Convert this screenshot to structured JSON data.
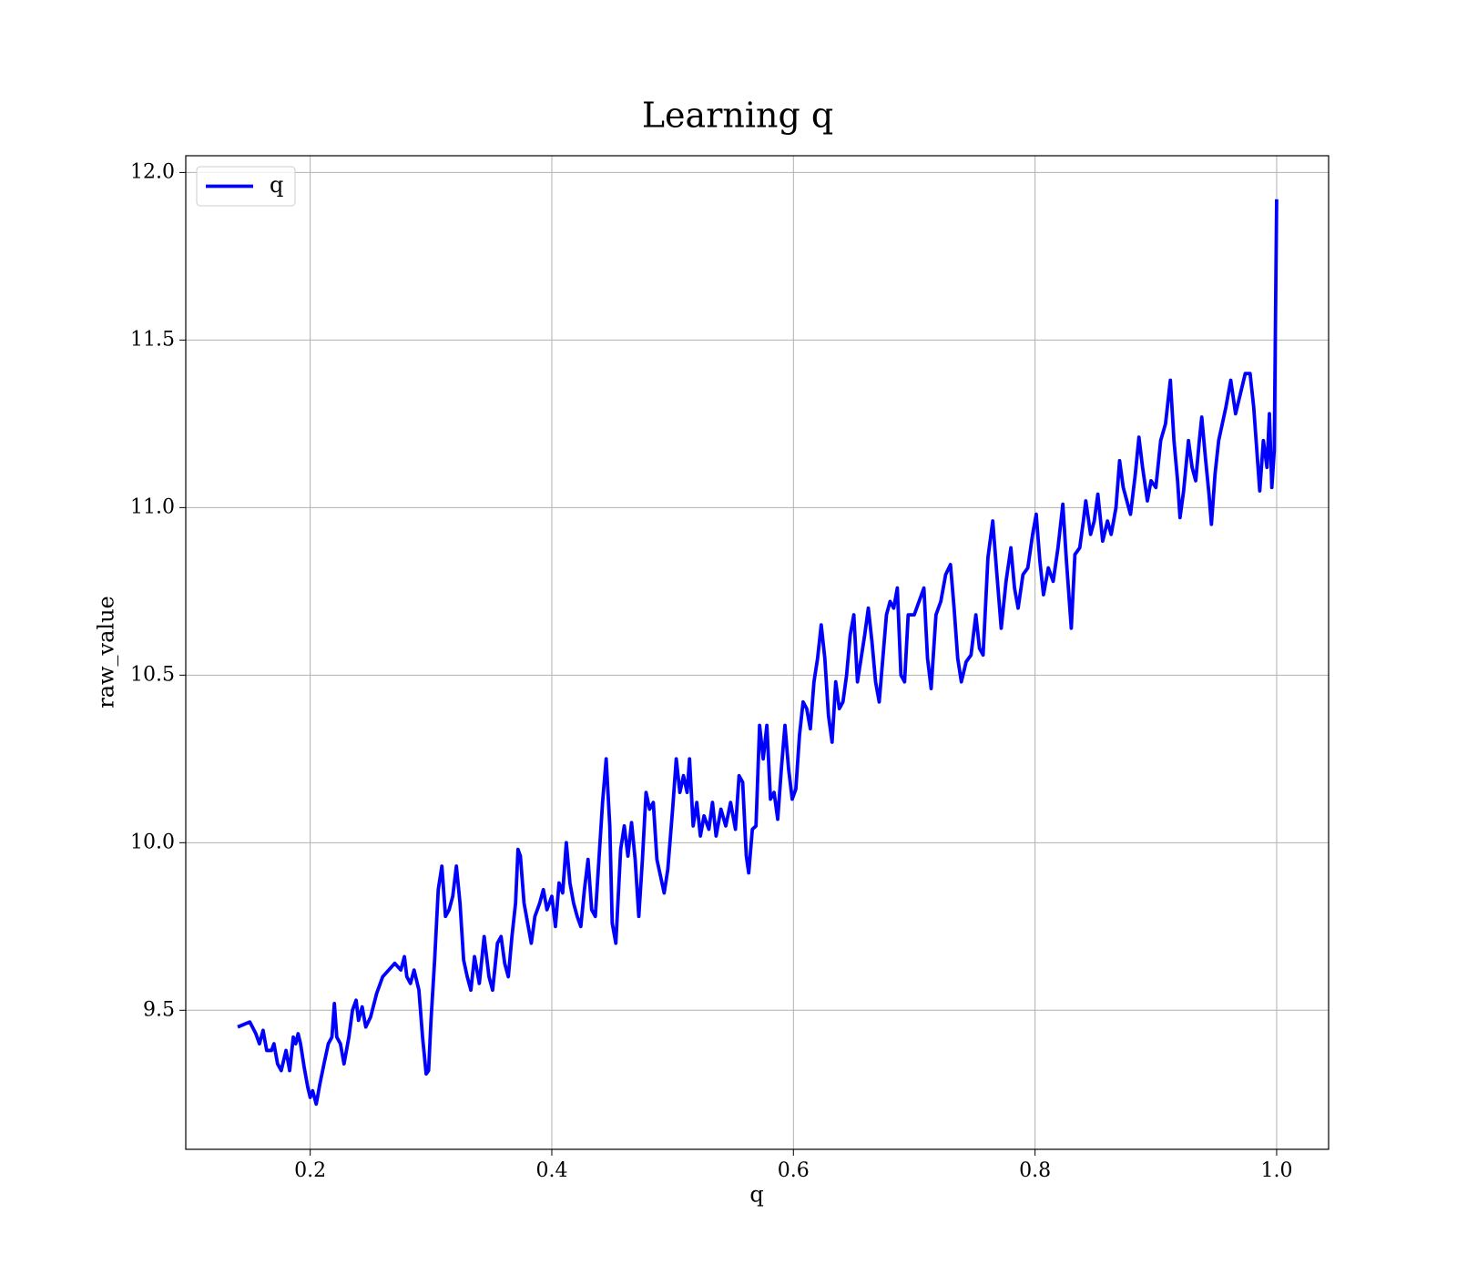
{
  "chart_data": {
    "type": "line",
    "title": "Learning q",
    "xlabel": "q",
    "ylabel": "raw_value",
    "x": [
      0.14,
      0.15,
      0.155,
      0.158,
      0.161,
      0.164,
      0.168,
      0.17,
      0.173,
      0.176,
      0.18,
      0.183,
      0.186,
      0.188,
      0.19,
      0.192,
      0.195,
      0.198,
      0.2,
      0.202,
      0.205,
      0.208,
      0.212,
      0.215,
      0.218,
      0.22,
      0.222,
      0.225,
      0.228,
      0.232,
      0.235,
      0.238,
      0.24,
      0.243,
      0.246,
      0.25,
      0.255,
      0.26,
      0.265,
      0.27,
      0.275,
      0.278,
      0.28,
      0.283,
      0.286,
      0.29,
      0.293,
      0.296,
      0.298,
      0.3,
      0.303,
      0.306,
      0.309,
      0.312,
      0.315,
      0.318,
      0.321,
      0.324,
      0.327,
      0.33,
      0.333,
      0.336,
      0.34,
      0.344,
      0.348,
      0.351,
      0.355,
      0.358,
      0.361,
      0.364,
      0.367,
      0.37,
      0.372,
      0.374,
      0.377,
      0.38,
      0.383,
      0.386,
      0.39,
      0.393,
      0.396,
      0.4,
      0.403,
      0.406,
      0.409,
      0.412,
      0.415,
      0.418,
      0.421,
      0.424,
      0.427,
      0.43,
      0.433,
      0.436,
      0.439,
      0.442,
      0.445,
      0.448,
      0.45,
      0.453,
      0.457,
      0.46,
      0.463,
      0.466,
      0.469,
      0.472,
      0.475,
      0.478,
      0.481,
      0.484,
      0.487,
      0.49,
      0.493,
      0.496,
      0.5,
      0.503,
      0.506,
      0.509,
      0.512,
      0.514,
      0.517,
      0.52,
      0.523,
      0.526,
      0.53,
      0.533,
      0.536,
      0.54,
      0.544,
      0.548,
      0.552,
      0.555,
      0.558,
      0.561,
      0.563,
      0.566,
      0.569,
      0.572,
      0.575,
      0.578,
      0.581,
      0.584,
      0.587,
      0.59,
      0.593,
      0.596,
      0.599,
      0.602,
      0.605,
      0.608,
      0.611,
      0.614,
      0.617,
      0.62,
      0.623,
      0.626,
      0.629,
      0.632,
      0.635,
      0.638,
      0.641,
      0.644,
      0.647,
      0.65,
      0.653,
      0.656,
      0.659,
      0.662,
      0.665,
      0.668,
      0.671,
      0.674,
      0.677,
      0.68,
      0.683,
      0.686,
      0.689,
      0.692,
      0.695,
      0.7,
      0.704,
      0.708,
      0.711,
      0.714,
      0.718,
      0.722,
      0.726,
      0.73,
      0.733,
      0.736,
      0.739,
      0.743,
      0.747,
      0.751,
      0.754,
      0.757,
      0.761,
      0.765,
      0.768,
      0.772,
      0.776,
      0.78,
      0.783,
      0.786,
      0.79,
      0.794,
      0.798,
      0.801,
      0.804,
      0.807,
      0.811,
      0.815,
      0.819,
      0.823,
      0.826,
      0.83,
      0.833,
      0.837,
      0.84,
      0.842,
      0.846,
      0.849,
      0.852,
      0.856,
      0.86,
      0.863,
      0.867,
      0.87,
      0.873,
      0.876,
      0.879,
      0.883,
      0.886,
      0.889,
      0.893,
      0.896,
      0.9,
      0.904,
      0.908,
      0.912,
      0.915,
      0.918,
      0.92,
      0.923,
      0.927,
      0.93,
      0.933,
      0.936,
      0.938,
      0.941,
      0.944,
      0.946,
      0.949,
      0.952,
      0.955,
      0.958,
      0.962,
      0.966,
      0.97,
      0.974,
      0.978,
      0.981,
      0.984,
      0.986,
      0.989,
      0.992,
      0.994,
      0.996,
      0.998,
      1.0
    ],
    "series": [
      {
        "name": "q",
        "color": "#0000ff",
        "values": [
          9.45,
          9.465,
          9.43,
          9.4,
          9.44,
          9.38,
          9.38,
          9.4,
          9.34,
          9.32,
          9.38,
          9.32,
          9.42,
          9.4,
          9.43,
          9.4,
          9.33,
          9.27,
          9.24,
          9.26,
          9.22,
          9.28,
          9.35,
          9.4,
          9.42,
          9.52,
          9.42,
          9.4,
          9.34,
          9.42,
          9.5,
          9.53,
          9.47,
          9.51,
          9.45,
          9.48,
          9.55,
          9.6,
          9.62,
          9.64,
          9.62,
          9.66,
          9.6,
          9.58,
          9.62,
          9.56,
          9.42,
          9.31,
          9.32,
          9.47,
          9.65,
          9.86,
          9.93,
          9.78,
          9.8,
          9.84,
          9.93,
          9.82,
          9.65,
          9.6,
          9.56,
          9.66,
          9.58,
          9.72,
          9.6,
          9.56,
          9.7,
          9.72,
          9.64,
          9.6,
          9.72,
          9.82,
          9.98,
          9.96,
          9.82,
          9.76,
          9.7,
          9.78,
          9.82,
          9.86,
          9.8,
          9.84,
          9.75,
          9.88,
          9.85,
          10.0,
          9.88,
          9.82,
          9.78,
          9.75,
          9.86,
          9.95,
          9.8,
          9.78,
          9.95,
          10.12,
          10.25,
          10.05,
          9.76,
          9.7,
          9.98,
          10.05,
          9.96,
          10.06,
          9.95,
          9.78,
          9.95,
          10.15,
          10.1,
          10.12,
          9.95,
          9.9,
          9.85,
          9.92,
          10.1,
          10.25,
          10.15,
          10.2,
          10.15,
          10.25,
          10.05,
          10.12,
          10.02,
          10.08,
          10.04,
          10.12,
          10.02,
          10.1,
          10.05,
          10.12,
          10.04,
          10.2,
          10.18,
          9.96,
          9.91,
          10.04,
          10.05,
          10.35,
          10.25,
          10.35,
          10.13,
          10.15,
          10.07,
          10.22,
          10.35,
          10.22,
          10.13,
          10.16,
          10.32,
          10.42,
          10.4,
          10.34,
          10.48,
          10.55,
          10.65,
          10.55,
          10.38,
          10.3,
          10.48,
          10.4,
          10.42,
          10.5,
          10.62,
          10.68,
          10.48,
          10.55,
          10.62,
          10.7,
          10.6,
          10.48,
          10.42,
          10.55,
          10.68,
          10.72,
          10.7,
          10.76,
          10.5,
          10.48,
          10.68,
          10.68,
          10.72,
          10.76,
          10.55,
          10.46,
          10.68,
          10.72,
          10.8,
          10.83,
          10.7,
          10.55,
          10.48,
          10.54,
          10.56,
          10.68,
          10.58,
          10.56,
          10.85,
          10.96,
          10.82,
          10.64,
          10.78,
          10.88,
          10.76,
          10.7,
          10.8,
          10.82,
          10.92,
          10.98,
          10.84,
          10.74,
          10.82,
          10.78,
          10.88,
          11.01,
          10.84,
          10.64,
          10.86,
          10.88,
          10.96,
          11.02,
          10.92,
          10.96,
          11.04,
          10.9,
          10.96,
          10.92,
          11.0,
          11.14,
          11.06,
          11.02,
          10.98,
          11.1,
          11.21,
          11.12,
          11.02,
          11.08,
          11.06,
          11.2,
          11.25,
          11.38,
          11.2,
          11.08,
          10.97,
          11.05,
          11.2,
          11.12,
          11.08,
          11.2,
          11.27,
          11.15,
          11.04,
          10.95,
          11.1,
          11.2,
          11.25,
          11.3,
          11.38,
          11.28,
          11.34,
          11.4,
          11.4,
          11.3,
          11.15,
          11.05,
          11.2,
          11.12,
          11.28,
          11.06,
          11.17,
          11.92
        ]
      }
    ],
    "xlim": [
      0.097,
      1.043
    ],
    "xticks": [
      0.2,
      0.4,
      0.6,
      0.8,
      {
        "value": 1.0,
        "label": "1.0"
      }
    ],
    "ylim": [
      9.085,
      12.05
    ],
    "yticks": [
      9.5,
      {
        "value": 10.0,
        "label": "10.0"
      },
      10.5,
      {
        "value": 11.0,
        "label": "11.0"
      },
      11.5,
      {
        "value": 12.0,
        "label": "12.0"
      }
    ],
    "grid": true,
    "legend": "upper left"
  }
}
